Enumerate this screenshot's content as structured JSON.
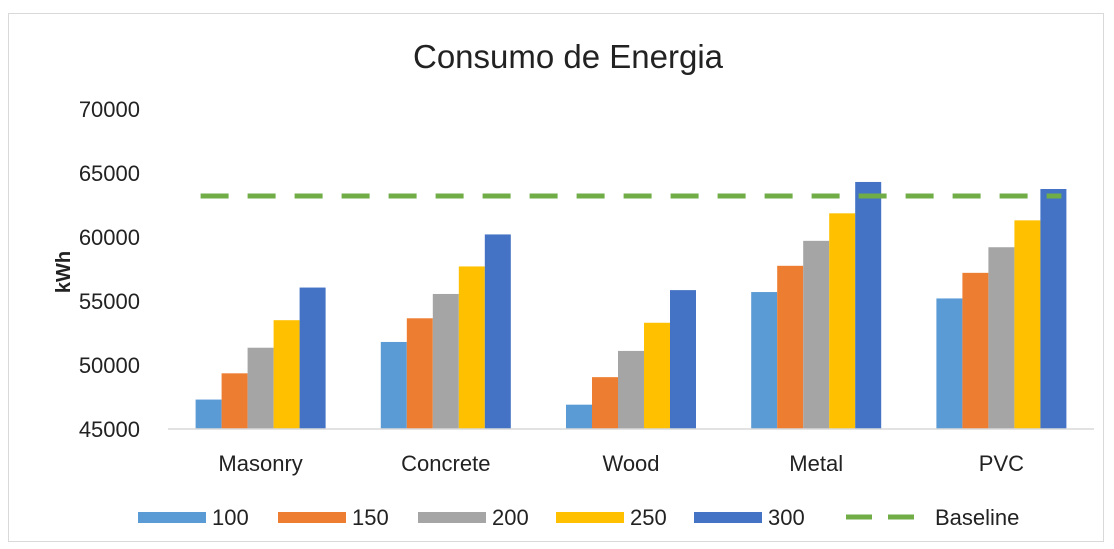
{
  "chart_data": {
    "type": "bar",
    "title": "Consumo de Energia",
    "xlabel": "",
    "ylabel": "kWh",
    "ylim": [
      45000,
      70000
    ],
    "yticks": [
      "45000",
      "50000",
      "55000",
      "60000",
      "65000",
      "70000"
    ],
    "grid": false,
    "legend": "bottom",
    "categories": [
      "Masonry",
      "Concrete",
      "Wood",
      "Metal",
      "PVC"
    ],
    "series": [
      {
        "name": "100",
        "color": "#5b9bd5",
        "values": [
          47300,
          51800,
          46900,
          55700,
          55200
        ]
      },
      {
        "name": "150",
        "color": "#ed7d31",
        "values": [
          49350,
          53650,
          49050,
          57750,
          57200
        ]
      },
      {
        "name": "200",
        "color": "#a5a5a5",
        "values": [
          51350,
          55550,
          51100,
          59700,
          59200
        ]
      },
      {
        "name": "250",
        "color": "#ffc000",
        "values": [
          53500,
          57700,
          53300,
          61850,
          61300
        ]
      },
      {
        "name": "300",
        "color": "#4472c4",
        "values": [
          56050,
          60200,
          55850,
          64300,
          63750
        ]
      }
    ],
    "baseline": {
      "name": "Baseline",
      "color": "#70ad47",
      "value": 63200
    }
  }
}
